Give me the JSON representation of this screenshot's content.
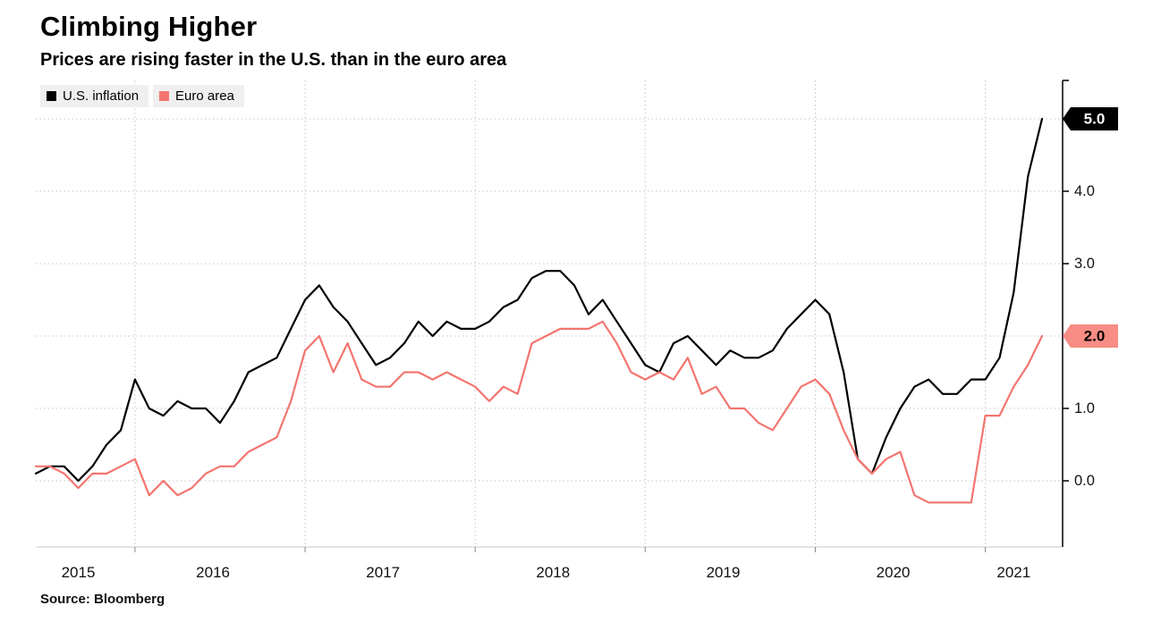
{
  "colors": {
    "background": "#ffffff",
    "grid": "#c4c4c4",
    "axis": "#000000",
    "tick": "#8a8a8a",
    "baseline": "#cbcbcb",
    "label_text": "#111111",
    "legend_chip_bg": "#efefef"
  },
  "chart_data": {
    "type": "line",
    "title": "Climbing Higher",
    "subtitle": "Prices are rising faster in the U.S. than in the euro area",
    "source": "Source: Bloomberg",
    "legend_position": "top-left",
    "grid": "dotted",
    "ylim": [
      -0.9,
      5.5
    ],
    "y_tick_values": [
      0,
      1,
      2,
      3,
      4,
      5
    ],
    "y_tick_labels": [
      "0.0",
      "1.0",
      "2.0",
      "3.0",
      "4.0",
      "5.0"
    ],
    "x_tick_labels": [
      "2015",
      "2016",
      "2017",
      "2018",
      "2019",
      "2020",
      "2021"
    ],
    "x": [
      "2015-06",
      "2015-07",
      "2015-08",
      "2015-09",
      "2015-10",
      "2015-11",
      "2015-12",
      "2016-01",
      "2016-02",
      "2016-03",
      "2016-04",
      "2016-05",
      "2016-06",
      "2016-07",
      "2016-08",
      "2016-09",
      "2016-10",
      "2016-11",
      "2016-12",
      "2017-01",
      "2017-02",
      "2017-03",
      "2017-04",
      "2017-05",
      "2017-06",
      "2017-07",
      "2017-08",
      "2017-09",
      "2017-10",
      "2017-11",
      "2017-12",
      "2018-01",
      "2018-02",
      "2018-03",
      "2018-04",
      "2018-05",
      "2018-06",
      "2018-07",
      "2018-08",
      "2018-09",
      "2018-10",
      "2018-11",
      "2018-12",
      "2019-01",
      "2019-02",
      "2019-03",
      "2019-04",
      "2019-05",
      "2019-06",
      "2019-07",
      "2019-08",
      "2019-09",
      "2019-10",
      "2019-11",
      "2019-12",
      "2020-01",
      "2020-02",
      "2020-03",
      "2020-04",
      "2020-05",
      "2020-06",
      "2020-07",
      "2020-08",
      "2020-09",
      "2020-10",
      "2020-11",
      "2020-12",
      "2021-01",
      "2021-02",
      "2021-03",
      "2021-04",
      "2021-05"
    ],
    "series": [
      {
        "name": "U.S. inflation",
        "color": "#000000",
        "end_label": "5.0",
        "end_label_bg": "#000000",
        "end_label_text_color": "#ffffff",
        "values": [
          0.1,
          0.2,
          0.2,
          0.0,
          0.2,
          0.5,
          0.7,
          1.4,
          1.0,
          0.9,
          1.1,
          1.0,
          1.0,
          0.8,
          1.1,
          1.5,
          1.6,
          1.7,
          2.1,
          2.5,
          2.7,
          2.4,
          2.2,
          1.9,
          1.6,
          1.7,
          1.9,
          2.2,
          2.0,
          2.2,
          2.1,
          2.1,
          2.2,
          2.4,
          2.5,
          2.8,
          2.9,
          2.9,
          2.7,
          2.3,
          2.5,
          2.2,
          1.9,
          1.6,
          1.5,
          1.9,
          2.0,
          1.8,
          1.6,
          1.8,
          1.7,
          1.7,
          1.8,
          2.1,
          2.3,
          2.5,
          2.3,
          1.5,
          0.3,
          0.1,
          0.6,
          1.0,
          1.3,
          1.4,
          1.2,
          1.2,
          1.4,
          1.4,
          1.7,
          2.6,
          4.2,
          5.0
        ]
      },
      {
        "name": "Euro area",
        "color": "#f3756f",
        "end_label": "2.0",
        "end_label_bg": "#f78d84",
        "end_label_text_color": "#000000",
        "values": [
          0.2,
          0.2,
          0.1,
          -0.1,
          0.1,
          0.1,
          0.2,
          0.3,
          -0.2,
          0.0,
          -0.2,
          -0.1,
          0.1,
          0.2,
          0.2,
          0.4,
          0.5,
          0.6,
          1.1,
          1.8,
          2.0,
          1.5,
          1.9,
          1.4,
          1.3,
          1.3,
          1.5,
          1.5,
          1.4,
          1.5,
          1.4,
          1.3,
          1.1,
          1.3,
          1.2,
          1.9,
          2.0,
          2.1,
          2.1,
          2.1,
          2.2,
          1.9,
          1.5,
          1.4,
          1.5,
          1.4,
          1.7,
          1.2,
          1.3,
          1.0,
          1.0,
          0.8,
          0.7,
          1.0,
          1.3,
          1.4,
          1.2,
          0.7,
          0.3,
          0.1,
          0.3,
          0.4,
          -0.2,
          -0.3,
          -0.3,
          -0.3,
          -0.3,
          0.9,
          0.9,
          1.3,
          1.6,
          2.0
        ]
      }
    ]
  }
}
